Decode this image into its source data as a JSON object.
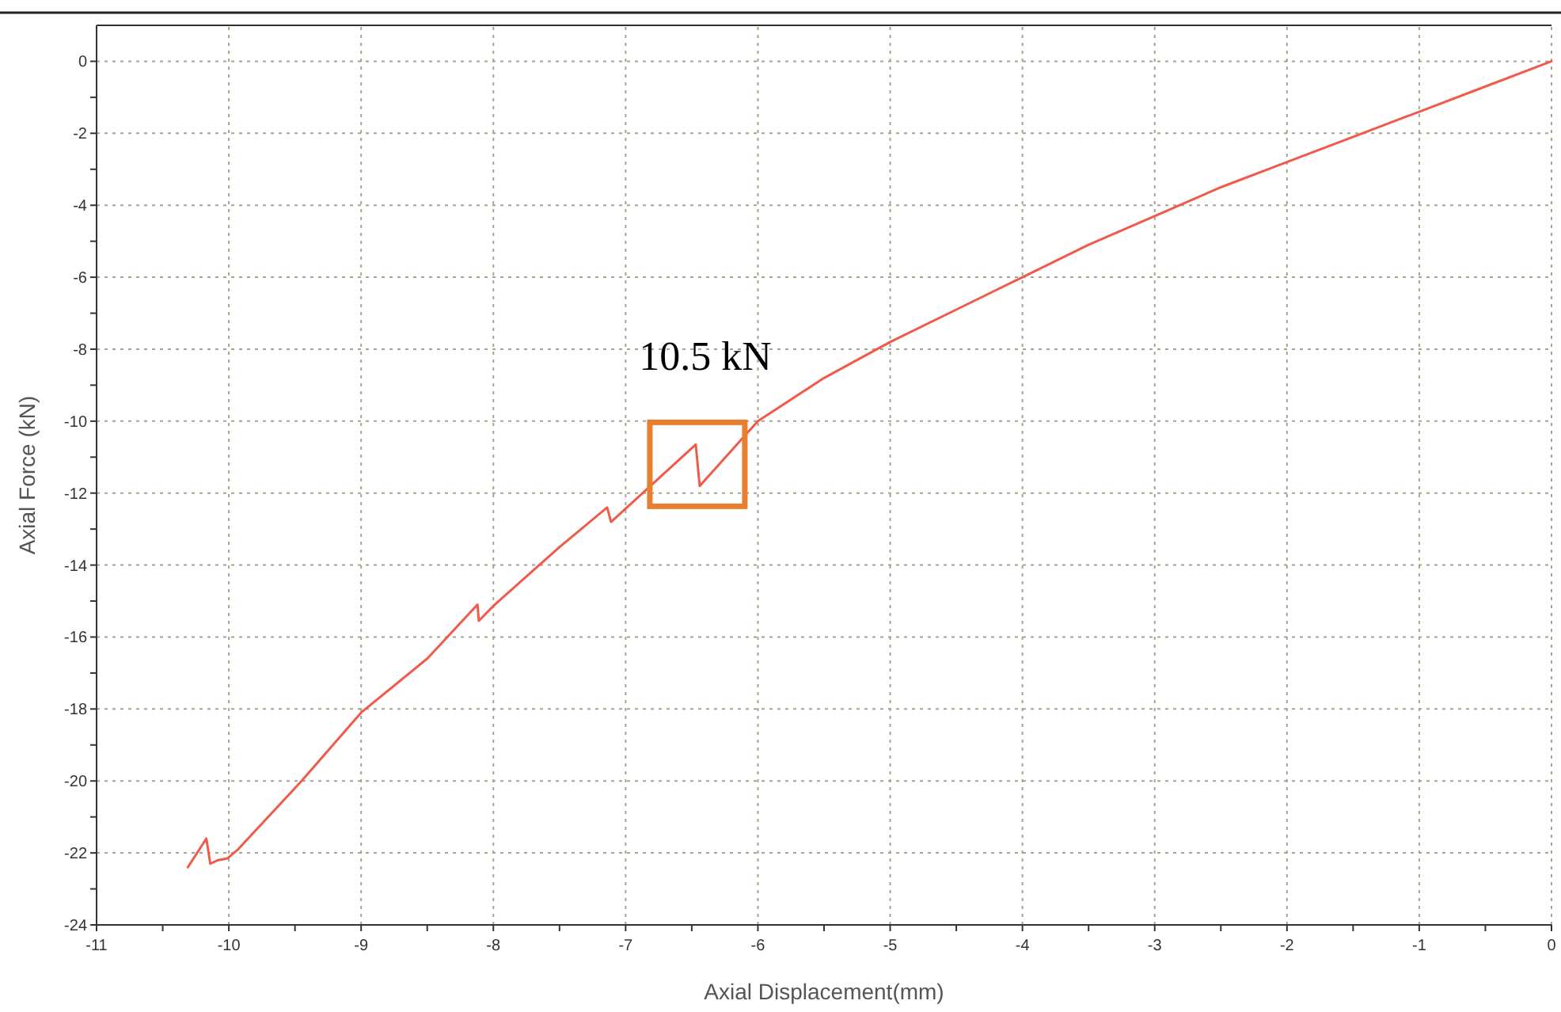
{
  "chart_data": {
    "type": "line",
    "xlabel": "Axial Displacement(mm)",
    "ylabel": "Axial Force (kN)",
    "xlim": [
      -11,
      0
    ],
    "ylim": [
      -24,
      1
    ],
    "xticks": [
      -11,
      {
        "value": -10.5,
        "label": null
      },
      -10,
      {
        "value": -9.5,
        "label": null
      },
      -9,
      {
        "value": -8.5,
        "label": null
      },
      -8,
      {
        "value": -7.5,
        "label": null
      },
      -7,
      {
        "value": -6.5,
        "label": null
      },
      -6,
      {
        "value": -5.5,
        "label": null
      },
      -5,
      {
        "value": -4.5,
        "label": null
      },
      -4,
      {
        "value": -3.5,
        "label": null
      },
      -3,
      {
        "value": -2.5,
        "label": null
      },
      -2,
      {
        "value": -1.5,
        "label": null
      },
      -1,
      {
        "value": -0.5,
        "label": null
      },
      0
    ],
    "yticks": [
      -24,
      {
        "value": -23,
        "label": null
      },
      -22,
      {
        "value": -21,
        "label": null
      },
      -20,
      {
        "value": -19,
        "label": null
      },
      -18,
      {
        "value": -17,
        "label": null
      },
      -16,
      {
        "value": -15,
        "label": null
      },
      -14,
      {
        "value": -13,
        "label": null
      },
      -12,
      {
        "value": -11,
        "label": null
      },
      -10,
      {
        "value": -9,
        "label": null
      },
      -8,
      {
        "value": -7,
        "label": null
      },
      -6,
      {
        "value": -5,
        "label": null
      },
      -4,
      {
        "value": -3,
        "label": null
      },
      -2,
      {
        "value": -1,
        "label": null
      },
      0
    ],
    "grid": true,
    "line_style": "solid",
    "marker": "none",
    "annotations": [
      {
        "text": "10.5 kN",
        "x": -6.47,
        "y": -10.65
      }
    ],
    "series": [
      {
        "color": "#f05a4a",
        "x": [
          -10.31,
          -10.17,
          -10.14,
          -10.08,
          -10.01,
          -9.93,
          -9.45,
          -9.0,
          -8.5,
          -8.12,
          -8.11,
          -7.99,
          -7.5,
          -7.14,
          -7.11,
          -6.47,
          -6.44,
          -6.0,
          -5.5,
          -5.0,
          -4.5,
          -4.0,
          -3.5,
          -3.0,
          -2.5,
          -2.0,
          -1.5,
          -1.0,
          -0.5,
          0
        ],
        "values": [
          -22.4,
          -21.6,
          -22.3,
          -22.2,
          -22.15,
          -21.9,
          -20.0,
          -18.1,
          -16.6,
          -15.1,
          -15.55,
          -15.1,
          -13.5,
          -12.4,
          -12.8,
          -10.65,
          -11.8,
          -10.0,
          -8.8,
          -7.8,
          -6.9,
          -6.0,
          -5.1,
          -4.3,
          -3.5,
          -2.8,
          -2.1,
          -1.4,
          -0.7,
          0
        ]
      }
    ]
  }
}
